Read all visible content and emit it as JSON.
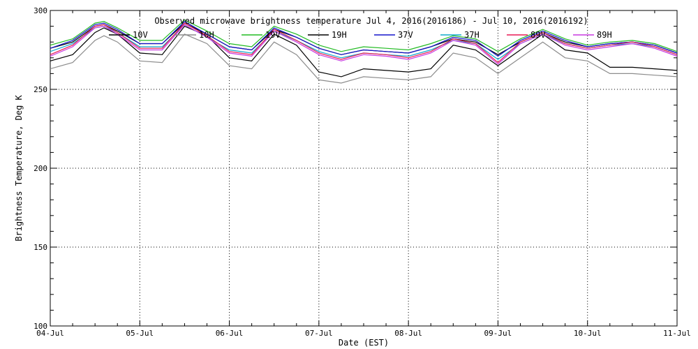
{
  "chart_data": {
    "type": "line",
    "title": "Observed microwave brightness temperature Jul  4, 2016(2016186) - Jul 10, 2016(2016192)",
    "xlabel": "Date (EST)",
    "ylabel": "Brightness Temperature, Deg K",
    "ylim": [
      100,
      300
    ],
    "xlim": [
      0,
      7
    ],
    "grid": true,
    "legend_position": "top",
    "x_ticks": [
      {
        "value": 0,
        "label": "04-Jul"
      },
      {
        "value": 1,
        "label": "05-Jul"
      },
      {
        "value": 2,
        "label": "06-Jul"
      },
      {
        "value": 3,
        "label": "07-Jul"
      },
      {
        "value": 4,
        "label": "08-Jul"
      },
      {
        "value": 5,
        "label": "09-Jul"
      },
      {
        "value": 6,
        "label": "10-Jul"
      },
      {
        "value": 7,
        "label": "11-Jul"
      }
    ],
    "y_ticks": [
      100,
      150,
      200,
      250,
      300
    ],
    "x": [
      0,
      0.25,
      0.5,
      0.6,
      0.75,
      1.0,
      1.25,
      1.5,
      1.75,
      2.0,
      2.25,
      2.5,
      2.75,
      3.0,
      3.25,
      3.5,
      3.75,
      4.0,
      4.25,
      4.5,
      4.75,
      5.0,
      5.25,
      5.5,
      5.75,
      6.0,
      6.25,
      6.5,
      6.75,
      7.0
    ],
    "series": [
      {
        "name": "10V",
        "color": "#000000",
        "values": [
          268,
          272,
          286,
          289,
          285,
          273,
          272,
          290,
          284,
          270,
          268,
          285,
          278,
          261,
          258,
          263,
          262,
          261,
          263,
          278,
          275,
          265,
          275,
          285,
          275,
          273,
          264,
          264,
          263,
          262
        ]
      },
      {
        "name": "10H",
        "color": "#8c8c8c",
        "values": [
          263,
          267,
          281,
          284,
          280,
          268,
          267,
          285,
          279,
          265,
          263,
          280,
          272,
          256,
          254,
          258,
          257,
          256,
          258,
          273,
          270,
          260,
          270,
          280,
          270,
          268,
          260,
          260,
          259,
          258
        ]
      },
      {
        "name": "19V",
        "color": "#22bb22",
        "values": [
          278,
          282,
          292,
          293,
          289,
          281,
          281,
          294,
          287,
          279,
          277,
          290,
          285,
          278,
          274,
          277,
          276,
          275,
          279,
          284,
          282,
          274,
          282,
          288,
          282,
          278,
          280,
          281,
          279,
          274
        ]
      },
      {
        "name": "19H",
        "color": "#000000",
        "values": [
          276,
          280,
          290,
          291,
          287,
          279,
          279,
          292,
          285,
          277,
          275,
          288,
          283,
          276,
          272,
          275,
          274,
          273,
          277,
          282,
          280,
          272,
          280,
          286,
          280,
          277,
          279,
          280,
          278,
          273
        ]
      },
      {
        "name": "37V",
        "color": "#1515cc",
        "values": [
          276,
          281,
          291,
          292,
          288,
          279,
          279,
          293,
          285,
          277,
          275,
          289,
          283,
          276,
          272,
          275,
          274,
          273,
          277,
          283,
          281,
          271,
          281,
          287,
          281,
          277,
          279,
          280,
          278,
          273
        ]
      },
      {
        "name": "37H",
        "color": "#11aacc",
        "values": [
          274,
          279,
          289,
          290,
          286,
          277,
          277,
          291,
          283,
          275,
          273,
          287,
          281,
          274,
          270,
          273,
          272,
          271,
          275,
          281,
          279,
          269,
          279,
          285,
          279,
          276,
          278,
          279,
          277,
          272
        ]
      },
      {
        "name": "89V",
        "color": "#e81a55",
        "values": [
          272,
          278,
          290,
          291,
          286,
          276,
          276,
          292,
          284,
          274,
          272,
          288,
          281,
          273,
          269,
          273,
          272,
          270,
          274,
          282,
          279,
          267,
          280,
          286,
          279,
          276,
          278,
          280,
          277,
          272
        ]
      },
      {
        "name": "89H",
        "color": "#c838e0",
        "values": [
          271,
          277,
          289,
          290,
          285,
          275,
          275,
          291,
          283,
          273,
          271,
          287,
          280,
          272,
          268,
          272,
          271,
          269,
          273,
          281,
          278,
          266,
          279,
          285,
          278,
          275,
          277,
          279,
          276,
          271
        ]
      }
    ]
  }
}
